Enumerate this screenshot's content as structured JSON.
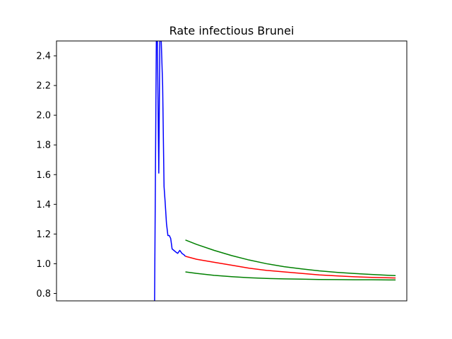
{
  "chart_data": {
    "type": "line",
    "title": "Rate infectious Brunei",
    "xlabel": "",
    "ylabel": "",
    "xlim": [
      0,
      100
    ],
    "ylim": [
      0.75,
      2.5
    ],
    "y_ticks": [
      0.8,
      1.0,
      1.2,
      1.4,
      1.6,
      1.8,
      2.0,
      2.2,
      2.4
    ],
    "y_tick_labels": [
      "0.8",
      "1.0",
      "1.2",
      "1.4",
      "1.6",
      "1.8",
      "2.0",
      "2.2",
      "2.4"
    ],
    "x_ticks_visible": false,
    "grid": false,
    "legend": "none",
    "series": [
      {
        "color": "#0000ff",
        "x": [
          28.0,
          28.5,
          28.8,
          29.2,
          29.5,
          29.9,
          30.3,
          30.7,
          31.0,
          31.4,
          31.8,
          32.2,
          32.6,
          33.0,
          33.5,
          34.0,
          34.6,
          35.2,
          35.8,
          36.4,
          36.8
        ],
        "y": [
          0.75,
          2.5,
          2.5,
          1.61,
          2.5,
          2.5,
          2.2,
          1.52,
          1.42,
          1.27,
          1.19,
          1.19,
          1.17,
          1.1,
          1.09,
          1.08,
          1.07,
          1.09,
          1.07,
          1.06,
          1.05
        ]
      },
      {
        "color": "#ff0000",
        "x": [
          36.8,
          40,
          45,
          50,
          55,
          60,
          65,
          70,
          75,
          80,
          85,
          90,
          95,
          96.8
        ],
        "y": [
          1.05,
          1.03,
          1.01,
          0.99,
          0.97,
          0.955,
          0.945,
          0.935,
          0.925,
          0.918,
          0.912,
          0.908,
          0.905,
          0.904
        ]
      },
      {
        "color": "#008000",
        "x": [
          36.8,
          40,
          45,
          50,
          55,
          60,
          65,
          70,
          75,
          80,
          85,
          90,
          95,
          96.8
        ],
        "y": [
          1.16,
          1.13,
          1.09,
          1.055,
          1.025,
          1.0,
          0.98,
          0.965,
          0.952,
          0.942,
          0.934,
          0.928,
          0.922,
          0.92
        ]
      },
      {
        "color": "#008000",
        "x": [
          36.8,
          40,
          45,
          50,
          55,
          60,
          65,
          70,
          75,
          80,
          85,
          90,
          95,
          96.8
        ],
        "y": [
          0.945,
          0.935,
          0.922,
          0.913,
          0.906,
          0.901,
          0.898,
          0.896,
          0.894,
          0.893,
          0.892,
          0.892,
          0.891,
          0.891
        ]
      }
    ]
  }
}
